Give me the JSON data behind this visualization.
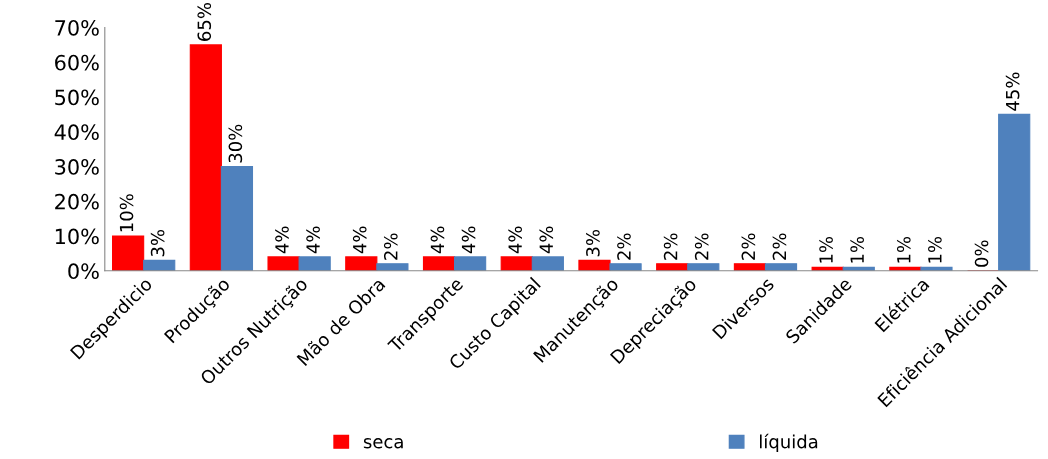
{
  "chart_data": {
    "type": "bar",
    "categories": [
      "Desperdicio",
      "Produção",
      "Outros Nutrição",
      "Mão de Obra",
      "Transporte",
      "Custo Capital",
      "Manutenção",
      "Depreciação",
      "Diversos",
      "Sanidade",
      "Elétrica",
      "Eficiência Adicional"
    ],
    "series": [
      {
        "name": "seca",
        "color": "#ff0000",
        "values": [
          10,
          65,
          4,
          4,
          4,
          4,
          3,
          2,
          2,
          1,
          1,
          0
        ],
        "value_labels": [
          "10%",
          "65%",
          "4%",
          "4%",
          "4%",
          "4%",
          "3%",
          "2%",
          "2%",
          "1%",
          "1%",
          "0%"
        ]
      },
      {
        "name": "líquida",
        "color": "#4f81bd",
        "values": [
          3,
          30,
          4,
          2,
          4,
          4,
          2,
          2,
          2,
          1,
          1,
          45
        ],
        "value_labels": [
          "3%",
          "30%",
          "4%",
          "2%",
          "4%",
          "4%",
          "2%",
          "2%",
          "2%",
          "1%",
          "1%",
          "45%"
        ]
      }
    ],
    "ylim": [
      0,
      70
    ],
    "yticks": [
      {
        "value": 0,
        "label": "0%"
      },
      {
        "value": 10,
        "label": "10%"
      },
      {
        "value": 20,
        "label": "20%"
      },
      {
        "value": 30,
        "label": "30%"
      },
      {
        "value": 40,
        "label": "40%"
      },
      {
        "value": 50,
        "label": "50%"
      },
      {
        "value": 60,
        "label": "60%"
      },
      {
        "value": 70,
        "label": "70%"
      }
    ],
    "grid": false,
    "legend": "bottom"
  }
}
